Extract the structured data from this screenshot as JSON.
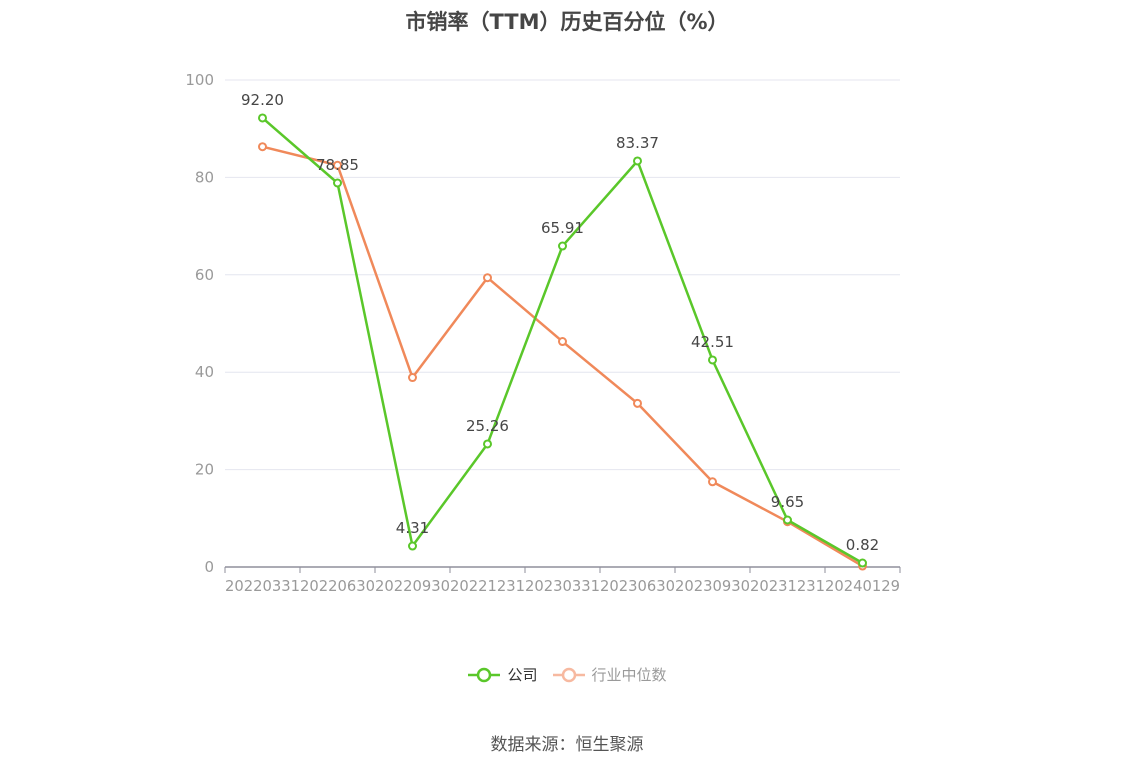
{
  "chart_data": {
    "type": "line",
    "title": "市销率（TTM）历史百分位（%）",
    "categories": [
      "20220331",
      "20220630",
      "20220930",
      "20221231",
      "20230331",
      "20230630",
      "20230930",
      "20231231",
      "20240129"
    ],
    "ylim": [
      0,
      100
    ],
    "yticks": [
      0,
      20,
      40,
      60,
      80,
      100
    ],
    "grid": true,
    "legend_position": "bottom",
    "series": [
      {
        "name": "公司",
        "color": "#5ac72a",
        "values": [
          92.2,
          78.85,
          4.31,
          25.26,
          65.91,
          83.37,
          42.51,
          9.65,
          0.82
        ],
        "labels": [
          "92.20",
          "78.85",
          "4.31",
          "25.26",
          "65.91",
          "83.37",
          "42.51",
          "9.65",
          "0.82"
        ]
      },
      {
        "name": "行业中位数",
        "color": "#f0895a",
        "legend_color": "#f7b9a0",
        "values": [
          86.3,
          82.5,
          38.9,
          59.4,
          46.3,
          33.6,
          17.5,
          9.3,
          0.2
        ]
      }
    ]
  },
  "source": "数据来源：恒生聚源"
}
